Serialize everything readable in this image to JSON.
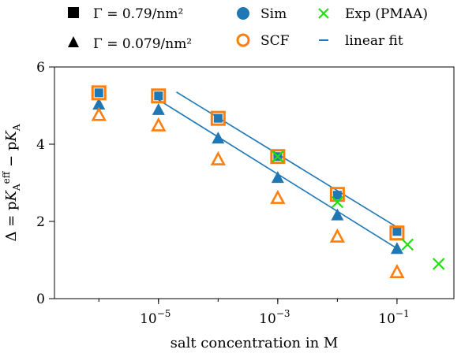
{
  "chart_data": {
    "type": "scatter",
    "xlabel": "salt concentration in M",
    "ylabel": "Δ = pK_A^eff − pK_A",
    "xscale": "log",
    "xlim": [
      1.8e-07,
      0.9
    ],
    "ylim": [
      0,
      6
    ],
    "x_ticks": [
      1e-05,
      0.001,
      0.1
    ],
    "x_tick_labels": [
      {
        "base": "10",
        "exp": "−5"
      },
      {
        "base": "10",
        "exp": "−3"
      },
      {
        "base": "10",
        "exp": "−1"
      }
    ],
    "y_ticks": [
      0,
      2,
      4,
      6
    ],
    "y_tick_labels": [
      "0",
      "2",
      "4",
      "6"
    ],
    "grid": false,
    "legend_position": "top",
    "legend": {
      "gamma_high": "Γ = 0.79/nm²",
      "gamma_low": "Γ = 0.079/nm²",
      "sim": "Sim",
      "scf": "SCF",
      "exp": "Exp (PMAA)",
      "fit": "linear fit"
    },
    "colors": {
      "sim": "#1f77b4",
      "scf": "#ff7f0e",
      "exp": "#22dd11",
      "fit": "#1f77b4",
      "legend_marker": "#000000"
    },
    "series": [
      {
        "name": "Sim",
        "label": "Γ = 0.79/nm²",
        "marker": "square",
        "x": [
          1e-06,
          1e-05,
          0.0001,
          0.001,
          0.01,
          0.1
        ],
        "y": [
          5.33,
          5.25,
          4.67,
          3.68,
          2.68,
          1.74
        ]
      },
      {
        "name": "Sim",
        "label": "Γ = 0.079/nm²",
        "marker": "triangle",
        "x": [
          1e-06,
          1e-05,
          0.0001,
          0.001,
          0.01,
          0.1
        ],
        "y": [
          5.02,
          4.88,
          4.14,
          3.12,
          2.15,
          1.28
        ]
      },
      {
        "name": "SCF",
        "label": "Γ = 0.79/nm²",
        "marker": "square-open",
        "x": [
          1e-06,
          1e-05,
          0.0001,
          0.001,
          0.01,
          0.1
        ],
        "y": [
          5.33,
          5.25,
          4.67,
          3.68,
          2.7,
          1.7
        ]
      },
      {
        "name": "SCF",
        "label": "Γ = 0.079/nm²",
        "marker": "triangle-open",
        "x": [
          1e-06,
          1e-05,
          0.0001,
          0.001,
          0.01,
          0.1
        ],
        "y": [
          4.75,
          4.48,
          3.6,
          2.6,
          1.6,
          0.68
        ]
      },
      {
        "name": "Exp (PMAA)",
        "marker": "x",
        "x": [
          0.001,
          0.01,
          0.15,
          0.5
        ],
        "y": [
          3.68,
          2.5,
          1.4,
          0.9
        ]
      },
      {
        "name": "linear fit",
        "label": "Γ = 0.79/nm²",
        "marker": "line",
        "x": [
          2e-05,
          0.1
        ],
        "y": [
          5.35,
          1.85
        ]
      },
      {
        "name": "linear fit",
        "label": "Γ = 0.079/nm²",
        "marker": "line",
        "x": [
          1e-05,
          0.1
        ],
        "y": [
          5.15,
          1.3
        ]
      }
    ]
  }
}
